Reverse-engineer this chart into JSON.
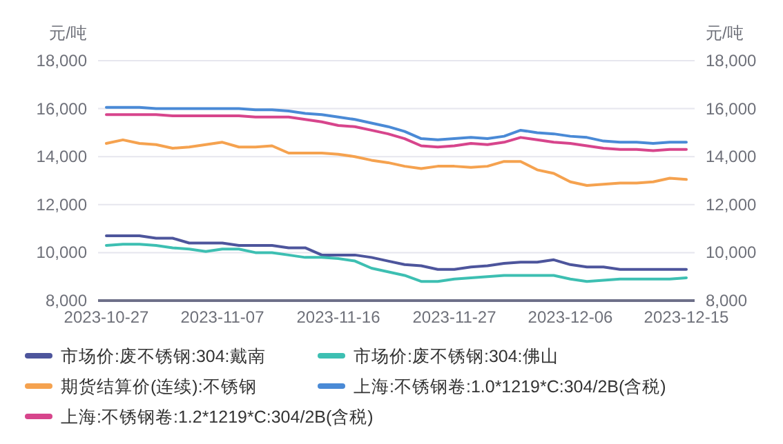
{
  "chart_data": {
    "type": "line",
    "ylabel": "元/吨",
    "y2label": "元/吨",
    "categories": [
      "2023-10-27",
      null,
      null,
      null,
      null,
      null,
      null,
      "2023-11-07",
      null,
      null,
      null,
      null,
      null,
      null,
      "2023-11-16",
      null,
      null,
      null,
      null,
      null,
      null,
      "2023-11-27",
      null,
      null,
      null,
      null,
      null,
      null,
      "2023-12-06",
      null,
      null,
      null,
      null,
      null,
      null,
      "2023-12-15"
    ],
    "series": [
      {
        "name": "市场价:废不锈钢:304:戴南",
        "color": "#4d559c",
        "values": [
          10700,
          10700,
          10700,
          10600,
          10600,
          10400,
          10400,
          10400,
          10300,
          10300,
          10300,
          10200,
          10200,
          9900,
          9900,
          9900,
          9800,
          9650,
          9500,
          9450,
          9300,
          9300,
          9400,
          9450,
          9550,
          9600,
          9600,
          9700,
          9500,
          9400,
          9400,
          9300,
          9300,
          9300,
          9300,
          9300
        ]
      },
      {
        "name": "市场价:废不锈钢:304:佛山",
        "color": "#3dbfb2",
        "values": [
          10300,
          10350,
          10350,
          10300,
          10200,
          10150,
          10050,
          10150,
          10150,
          10000,
          10000,
          9900,
          9800,
          9800,
          9750,
          9650,
          9350,
          9200,
          9050,
          8800,
          8800,
          8900,
          8950,
          9000,
          9050,
          9050,
          9050,
          9050,
          8900,
          8800,
          8850,
          8900,
          8900,
          8900,
          8900,
          8950
        ]
      },
      {
        "name": "期货结算价(连续):不锈钢",
        "color": "#f5a24f",
        "values": [
          14550,
          14700,
          14550,
          14500,
          14350,
          14400,
          14500,
          14600,
          14400,
          14400,
          14450,
          14150,
          14150,
          14150,
          14100,
          14000,
          13850,
          13750,
          13600,
          13500,
          13600,
          13600,
          13550,
          13600,
          13800,
          13800,
          13450,
          13300,
          12950,
          12800,
          12850,
          12900,
          12900,
          12950,
          13100,
          13050
        ]
      },
      {
        "name": "上海:不锈钢卷:1.0*1219*C:304/2B(含税)",
        "color": "#4a8ad6",
        "values": [
          16050,
          16050,
          16050,
          16000,
          16000,
          16000,
          16000,
          16000,
          16000,
          15950,
          15950,
          15900,
          15800,
          15750,
          15650,
          15550,
          15400,
          15250,
          15050,
          14750,
          14700,
          14750,
          14800,
          14750,
          14850,
          15100,
          15000,
          14950,
          14850,
          14800,
          14650,
          14600,
          14600,
          14550,
          14600,
          14600
        ]
      },
      {
        "name": "上海:不锈钢卷:1.2*1219*C:304/2B(含税)",
        "color": "#d7458c",
        "values": [
          15750,
          15750,
          15750,
          15750,
          15700,
          15700,
          15700,
          15700,
          15700,
          15650,
          15650,
          15650,
          15550,
          15450,
          15300,
          15250,
          15100,
          14950,
          14750,
          14450,
          14400,
          14450,
          14550,
          14500,
          14600,
          14800,
          14700,
          14600,
          14550,
          14450,
          14350,
          14300,
          14300,
          14250,
          14300,
          14300
        ]
      }
    ],
    "ylim": [
      8000,
      18000
    ],
    "yticks": [
      {
        "value": 8000,
        "label": "8,000"
      },
      {
        "value": 10000,
        "label": "10,000"
      },
      {
        "value": 12000,
        "label": "12,000"
      },
      {
        "value": 14000,
        "label": "14,000"
      },
      {
        "value": 16000,
        "label": "16,000"
      },
      {
        "value": 18000,
        "label": "18,000"
      }
    ],
    "y2lim": [
      8000,
      18000
    ],
    "y2ticks": [
      {
        "value": 8000,
        "label": "8,000"
      },
      {
        "value": 10000,
        "label": "10,000"
      },
      {
        "value": 12000,
        "label": "12,000"
      },
      {
        "value": 14000,
        "label": "14,000"
      },
      {
        "value": 16000,
        "label": "16,000"
      },
      {
        "value": 18000,
        "label": "18,000"
      }
    ],
    "grid": "y",
    "legend": "bottom"
  }
}
